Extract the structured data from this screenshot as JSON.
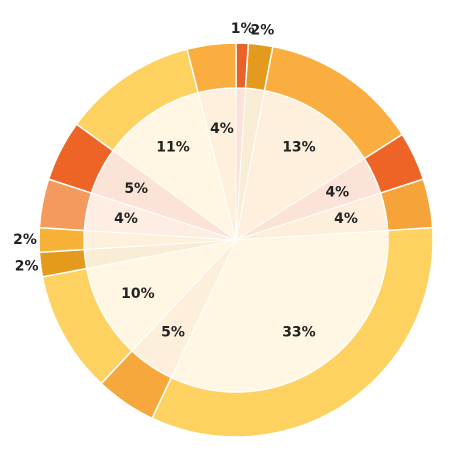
{
  "chart_data": {
    "type": "pie",
    "values": [
      1,
      2,
      13,
      4,
      4,
      33,
      5,
      10,
      2,
      2,
      4,
      5,
      11,
      4
    ],
    "value_labels": [
      "1%",
      "2%",
      "13%",
      "4%",
      "4%",
      "33%",
      "5%",
      "10%",
      "2%",
      "2%",
      "4%",
      "5%",
      "11%",
      "4%"
    ],
    "colors": [
      "#e8622a",
      "#e49a1c",
      "#f9ae3f",
      "#ee6426",
      "#f6a43a",
      "#fdd261",
      "#f7a83c",
      "#fdd261",
      "#e49a1c",
      "#f7b136",
      "#f49a5c",
      "#ee6426",
      "#fdd261",
      "#f9ae3f"
    ]
  }
}
